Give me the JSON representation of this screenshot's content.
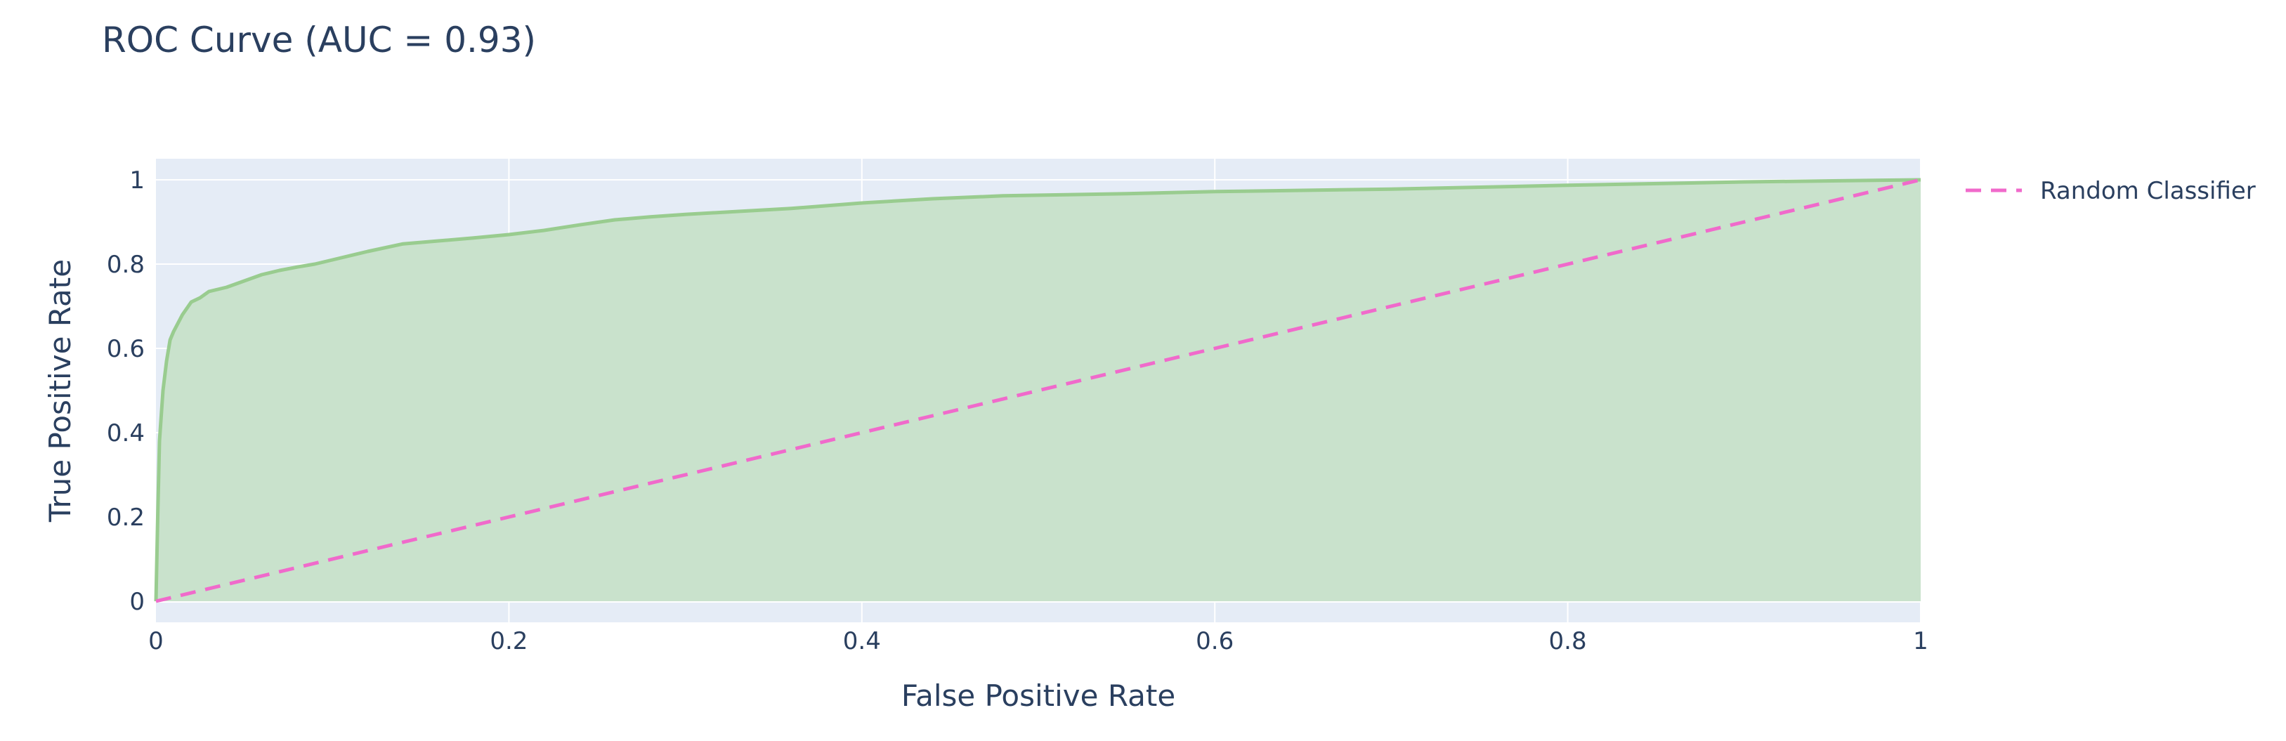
{
  "chart_data": {
    "type": "line",
    "title": "ROC Curve (AUC = 0.93)",
    "xlabel": "False Positive Rate",
    "ylabel": "True Positive Rate",
    "xlim": [
      0,
      1
    ],
    "ylim": [
      -0.05,
      1.05
    ],
    "x_ticks": [
      0,
      0.2,
      0.4,
      0.6,
      0.8,
      1
    ],
    "y_ticks": [
      0,
      0.2,
      0.4,
      0.6,
      0.8,
      1
    ],
    "x_tick_labels": [
      "0",
      "0.2",
      "0.4",
      "0.6",
      "0.8",
      "1"
    ],
    "y_tick_labels": [
      "0",
      "0.2",
      "0.4",
      "0.6",
      "0.8",
      "1"
    ],
    "grid": true,
    "legend_position": "top-right",
    "series": [
      {
        "fill": "tozeroy",
        "color": "#99cc8f",
        "fill_color": "#c9e2cc",
        "x": [
          0,
          0.001,
          0.002,
          0.004,
          0.006,
          0.008,
          0.01,
          0.015,
          0.02,
          0.025,
          0.03,
          0.04,
          0.05,
          0.06,
          0.07,
          0.08,
          0.09,
          0.1,
          0.12,
          0.14,
          0.16,
          0.18,
          0.2,
          0.22,
          0.24,
          0.26,
          0.28,
          0.3,
          0.33,
          0.36,
          0.4,
          0.44,
          0.48,
          0.55,
          0.6,
          0.7,
          0.8,
          0.9,
          1
        ],
        "y": [
          0,
          0.2,
          0.38,
          0.5,
          0.57,
          0.62,
          0.64,
          0.68,
          0.71,
          0.72,
          0.735,
          0.745,
          0.76,
          0.775,
          0.785,
          0.793,
          0.8,
          0.81,
          0.83,
          0.848,
          0.855,
          0.862,
          0.87,
          0.88,
          0.893,
          0.905,
          0.912,
          0.918,
          0.925,
          0.932,
          0.945,
          0.955,
          0.962,
          0.967,
          0.972,
          0.978,
          0.987,
          0.995,
          1
        ]
      },
      {
        "name": "Random Classifier",
        "dash": "dash",
        "color": "#f06acb",
        "x": [
          0,
          1
        ],
        "y": [
          0,
          1
        ]
      }
    ]
  }
}
